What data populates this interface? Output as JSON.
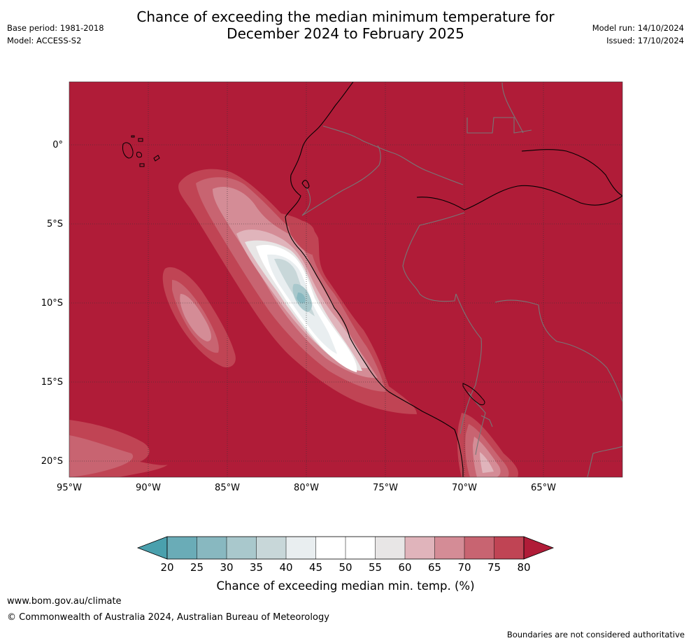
{
  "title_line1": "Chance of exceeding the median minimum temperature for",
  "title_line2": "December 2024 to February 2025",
  "base_period": "Base period: 1981-2018",
  "model": "Model: ACCESS-S2",
  "model_run": "Model run: 14/10/2024",
  "issued": "Issued: 17/10/2024",
  "lat_labels": [
    "0°",
    "5°S",
    "10°S",
    "15°S",
    "20°S"
  ],
  "lon_labels": [
    "95°W",
    "90°W",
    "85°W",
    "80°W",
    "75°W",
    "70°W",
    "65°W"
  ],
  "colorbar": {
    "label": "Chance of exceeding median min. temp. (%)",
    "ticks": [
      "20",
      "25",
      "30",
      "35",
      "40",
      "45",
      "50",
      "55",
      "60",
      "65",
      "70",
      "75",
      "80"
    ],
    "colors": [
      "#6aacb7",
      "#88b8c0",
      "#a9c8cc",
      "#c8d7d9",
      "#e9eef0",
      "#ffffff",
      "#ffffff",
      "#e8e6e6",
      "#e0b4bb",
      "#d48c96",
      "#c86471",
      "#c04454"
    ],
    "under_color": "#4aa0ad",
    "over_color": "#b01c38"
  },
  "colors": {
    "ocean_land_fill": "#b01c38",
    "coastline": "#000000",
    "border": "#777777"
  },
  "footer_url": "www.bom.gov.au/climate",
  "footer_copyright": "© Commonwealth of Australia 2024, Australian Bureau of Meteorology",
  "disclaimer": "Boundaries are not considered authoritative"
}
